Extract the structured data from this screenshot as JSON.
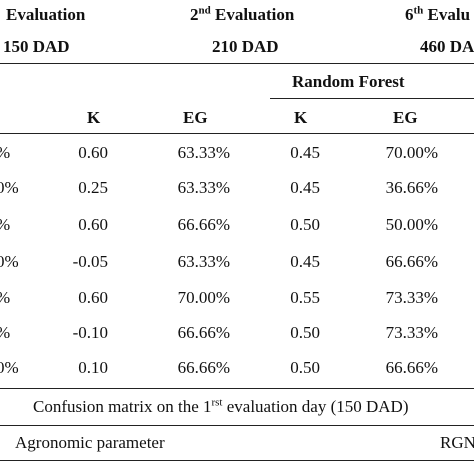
{
  "header": {
    "evaluations": [
      {
        "label": "Evaluation"
      },
      {
        "number": "2",
        "suffix": "nd",
        "label": " Evaluation"
      },
      {
        "number": "6",
        "suffix": "th",
        "label": " Evalu"
      }
    ],
    "dad": [
      "150 DAD",
      "210 DAD",
      "460 DA"
    ],
    "group": "Random Forest"
  },
  "table": {
    "columns": [
      "K",
      "EG",
      "K",
      "EG"
    ],
    "row_edges": [
      "%",
      "0%",
      "%",
      "0%",
      "%",
      "%",
      "0%"
    ],
    "rows": [
      [
        "0.60",
        "63.33%",
        "0.45",
        "70.00%"
      ],
      [
        "0.25",
        "63.33%",
        "0.45",
        "36.66%"
      ],
      [
        "0.60",
        "66.66%",
        "0.50",
        "50.00%"
      ],
      [
        "-0.05",
        "63.33%",
        "0.45",
        "66.66%"
      ],
      [
        "0.60",
        "70.00%",
        "0.55",
        "73.33%"
      ],
      [
        "-0.10",
        "66.66%",
        "0.50",
        "73.33%"
      ],
      [
        "0.10",
        "66.66%",
        "0.50",
        "66.66%"
      ]
    ]
  },
  "footer": {
    "caption": {
      "before": "Confusion matrix on the 1",
      "suffix": "rst",
      "after": " evaluation day (150 DAD)"
    },
    "parameter": "Agronomic parameter",
    "right": "RGN"
  }
}
